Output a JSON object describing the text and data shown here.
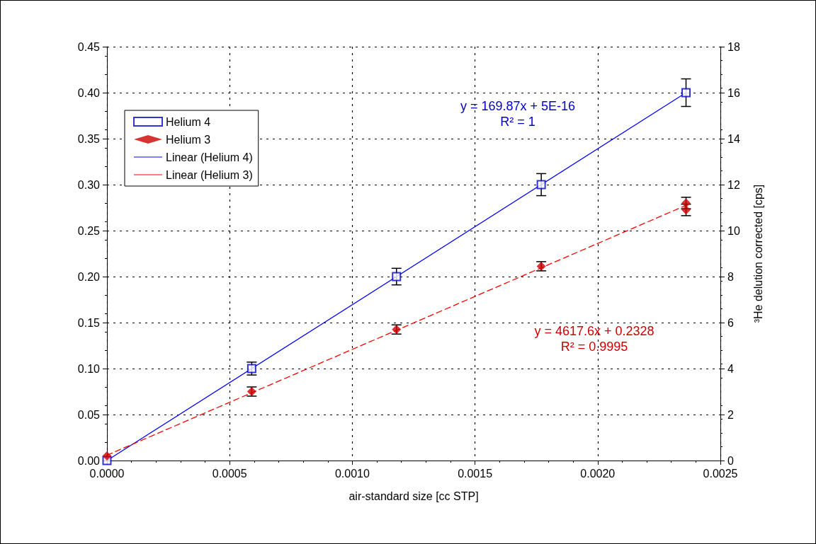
{
  "chart_data": {
    "type": "scatter",
    "xlabel": "air-standard size [cc STP]",
    "y2label": "³He delution corrected [cps]",
    "xlim": [
      0,
      0.0025
    ],
    "xticks": [
      {
        "value": 0,
        "label": "0.0000"
      },
      {
        "value": 0.0005,
        "label": "0.0005"
      },
      {
        "value": 0.001,
        "label": "0.0010"
      },
      {
        "value": 0.0015,
        "label": "0.0015"
      },
      {
        "value": 0.002,
        "label": "0.0020"
      },
      {
        "value": 0.0025,
        "label": "0.0025"
      }
    ],
    "ylim": [
      0,
      0.45
    ],
    "yticks": [
      {
        "value": 0,
        "label": "0.00"
      },
      0.05,
      {
        "value": 0.1,
        "label": "0.10"
      },
      0.15,
      {
        "value": 0.2,
        "label": "0.20"
      },
      0.25,
      {
        "value": 0.3,
        "label": "0.30"
      },
      0.35,
      {
        "value": 0.4,
        "label": "0.40"
      },
      0.45
    ],
    "y2lim": [
      0,
      18
    ],
    "y2ticks": [
      0,
      2,
      4,
      6,
      8,
      10,
      12,
      14,
      16,
      18
    ],
    "grid": true,
    "legend": "top left",
    "series": [
      {
        "name": "Helium 4",
        "marker": "square",
        "color": "#0000cc",
        "x": [
          0,
          0.00059,
          0.00118,
          0.00177,
          0.00236
        ],
        "values": [
          0,
          0.1,
          0.2,
          0.3,
          0.4
        ],
        "errors": [
          null,
          0.007,
          0.009,
          0.012,
          0.015
        ]
      },
      {
        "name": "Helium 3",
        "marker": "diamond",
        "axis": "y2",
        "color": "#cc0000",
        "x": [
          0,
          0.00059,
          0.00118,
          0.00177,
          0.00236,
          0.00236
        ],
        "values": [
          0.2,
          3.0,
          5.7,
          8.45,
          10.9,
          11.2
        ],
        "errors": [
          null,
          0.2,
          0.2,
          0.2,
          0.25,
          0.25
        ]
      },
      {
        "name": "Linear (Helium 4)",
        "type": "line",
        "marker": "none",
        "line_style": "solid",
        "color": "#0000ff",
        "x": [
          0,
          0.00236
        ],
        "values": [
          0,
          0.4
        ]
      },
      {
        "name": "Linear (Helium 3)",
        "type": "line",
        "marker": "none",
        "line_style": "dashed",
        "axis": "y2",
        "color": "#ff0000",
        "x": [
          0,
          0.00236
        ],
        "values": [
          0.23,
          11.1
        ]
      }
    ],
    "annotations": [
      "y = 169.87x + 5E-16",
      "R² = 1",
      "y = 4617.6x + 0.2328",
      "R² = 0.9995"
    ]
  }
}
